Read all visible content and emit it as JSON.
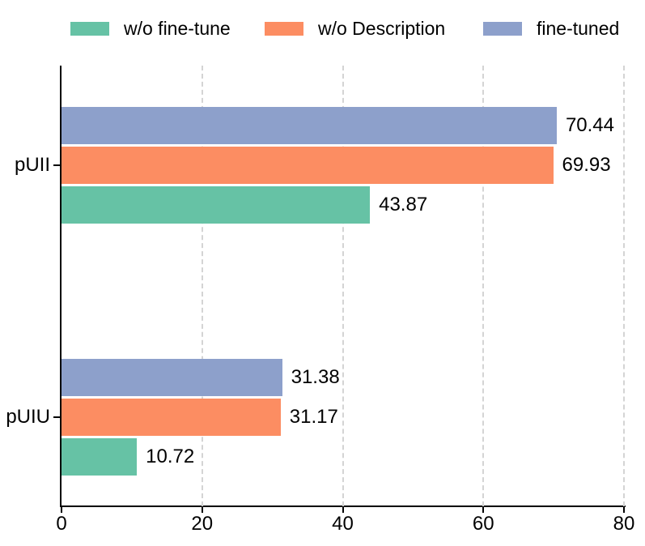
{
  "chart_data": {
    "type": "bar",
    "orientation": "horizontal",
    "title": "",
    "xlabel": "",
    "ylabel": "",
    "categories": [
      "pUII",
      "pUIU"
    ],
    "series": [
      {
        "name": "w/o fine-tune",
        "color": "#66c2a5",
        "values": [
          43.87,
          10.72
        ]
      },
      {
        "name": "w/o Description",
        "color": "#fc8d62",
        "values": [
          69.93,
          31.17
        ]
      },
      {
        "name": "fine-tuned",
        "color": "#8da0cb",
        "values": [
          70.44,
          31.38
        ]
      }
    ],
    "bar_order_top_to_bottom": [
      "fine-tuned",
      "w/o Description",
      "w/o fine-tune"
    ],
    "value_label_decimals": 2,
    "xlim": [
      0,
      80
    ],
    "xticks": [
      0,
      20,
      40,
      60,
      80
    ],
    "grid": "vertical dashed gridlines at 20, 40, 60, 80",
    "legend_position": "top",
    "colors": {
      "axis": "#000000",
      "gridline": "#d4d4d4",
      "text": "#000000",
      "background": "#ffffff"
    }
  }
}
